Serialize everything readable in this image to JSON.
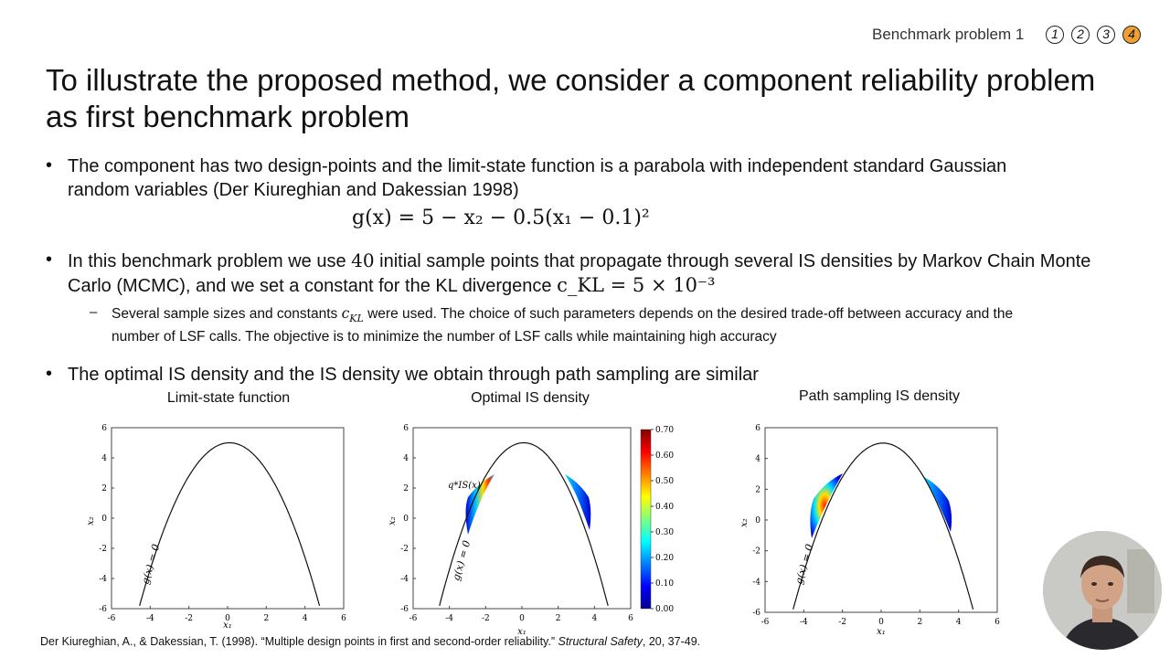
{
  "header": {
    "title": "Benchmark problem 1",
    "steps": [
      "1",
      "2",
      "3",
      "4"
    ],
    "active_step": "4"
  },
  "slide": {
    "title": "To illustrate the proposed method, we consider a component reliability problem as first benchmark problem",
    "bullets": [
      {
        "text": "The component has two design-points and the limit-state function is a parabola with independent standard Gaussian random variables (Der Kiureghian and Dakessian 1998)"
      },
      {
        "text_before": "In this benchmark problem we use ",
        "number": "40",
        "text_after": " initial sample points that propagate through several IS densities by Markov Chain Monte Carlo (MCMC), and we set a constant for the KL divergence "
      },
      {
        "text": "The optimal IS density and the IS density we obtain through path sampling are similar"
      }
    ],
    "sub_bullet": {
      "before": "Several sample sizes and constants ",
      "after": " were used. The choice of such parameters depends on the desired trade-off between accuracy and the number of LSF calls. The objective is to minimize the number of LSF calls while maintaining high accuracy"
    },
    "formula": "g(x) = 5 − x₂ − 0.5(x₁ − 0.1)²",
    "kl_expr": "c_KL = 5 × 10⁻³"
  },
  "plots": [
    {
      "title": "Limit-state function",
      "xlabel": "x₁",
      "ylabel": "x₂",
      "curve_label": "g(x) = 0"
    },
    {
      "title": "Optimal IS density",
      "xlabel": "x₁",
      "ylabel": "x₂",
      "curve_label": "g(x) = 0",
      "density_label": "q*IS(x)"
    },
    {
      "title": "Path sampling IS density",
      "xlabel": "x₁",
      "ylabel": "x₂",
      "curve_label": "g(x) = 0"
    }
  ],
  "colorbar": {
    "ticks": [
      "0.70",
      "0.60",
      "0.50",
      "0.40",
      "0.30",
      "0.20",
      "0.10",
      "0.00"
    ]
  },
  "chart_data": [
    {
      "type": "line",
      "title": "Limit-state function",
      "x_ticks": [
        "-6",
        "-4",
        "-2",
        "0",
        "2",
        "4",
        "6"
      ],
      "y_ticks": [
        "6",
        "4",
        "2",
        "0",
        "-2",
        "-4",
        "-6"
      ],
      "xlim": [
        -6,
        6
      ],
      "ylim": [
        -6,
        6
      ],
      "series": [
        {
          "name": "g(x) = 0",
          "equation": "x2 = 5 - 0.5(x1 - 0.1)^2"
        }
      ]
    },
    {
      "type": "heatmap",
      "title": "Optimal IS density",
      "x_ticks": [
        "-6",
        "-4",
        "-2",
        "0",
        "2",
        "4",
        "6"
      ],
      "y_ticks": [
        "6",
        "4",
        "2",
        "0",
        "-2",
        "-4",
        "-6"
      ],
      "xlim": [
        -6,
        6
      ],
      "ylim": [
        -6,
        6
      ],
      "colorbar_range": [
        0.0,
        0.7
      ]
    },
    {
      "type": "heatmap",
      "title": "Path sampling IS density",
      "x_ticks": [
        "-6",
        "-4",
        "-2",
        "0",
        "2",
        "4",
        "6"
      ],
      "y_ticks": [
        "6",
        "4",
        "2",
        "0",
        "-2",
        "-4",
        "-6"
      ],
      "xlim": [
        -6,
        6
      ],
      "ylim": [
        -6,
        6
      ]
    }
  ],
  "reference": {
    "authors": "Der Kiureghian, A., & Dakessian, T. (1998). “Multiple design points in first and second-order reliability.” ",
    "journal": "Structural Safety",
    "rest": ", 20, 37-49."
  }
}
